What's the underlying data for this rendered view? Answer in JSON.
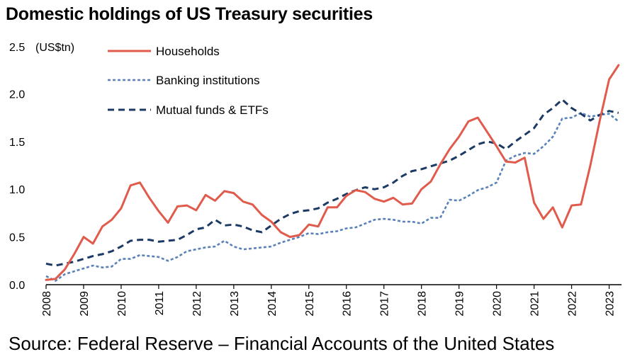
{
  "chart_data": {
    "type": "line",
    "title": "Domestic holdings of US Treasury securities",
    "ylabel": "(US$tn)",
    "xlabel": "",
    "source": "Source: Federal Reserve – Financial Accounts of the United States",
    "ylim": [
      0,
      2.5
    ],
    "xlim": [
      2008,
      2023.33
    ],
    "yticks": [
      "0.0",
      "0.5",
      "1.0",
      "1.5",
      "2.0",
      "2.5"
    ],
    "xticks": [
      "2008",
      "2009",
      "2010",
      "2011",
      "2012",
      "2013",
      "2014",
      "2015",
      "2016",
      "2017",
      "2018",
      "2019",
      "2020",
      "2021",
      "2022",
      "2023"
    ],
    "grid": false,
    "legend_position": "top-left",
    "series": [
      {
        "name": "Households",
        "color": "#e15b4c",
        "style": "solid",
        "x": [
          2008.0,
          2008.25,
          2008.5,
          2008.75,
          2009.0,
          2009.25,
          2009.5,
          2009.75,
          2010.0,
          2010.25,
          2010.5,
          2010.75,
          2011.0,
          2011.25,
          2011.5,
          2011.75,
          2012.0,
          2012.25,
          2012.5,
          2012.75,
          2013.0,
          2013.25,
          2013.5,
          2013.75,
          2014.0,
          2014.25,
          2014.5,
          2014.75,
          2015.0,
          2015.25,
          2015.5,
          2015.75,
          2016.0,
          2016.25,
          2016.5,
          2016.75,
          2017.0,
          2017.25,
          2017.5,
          2017.75,
          2018.0,
          2018.25,
          2018.5,
          2018.75,
          2019.0,
          2019.25,
          2019.5,
          2019.75,
          2020.0,
          2020.25,
          2020.5,
          2020.75,
          2021.0,
          2021.25,
          2021.5,
          2021.75,
          2022.0,
          2022.25,
          2022.5,
          2022.75,
          2023.0,
          2023.25
        ],
        "values": [
          0.05,
          0.06,
          0.16,
          0.32,
          0.5,
          0.43,
          0.61,
          0.68,
          0.8,
          1.04,
          1.07,
          0.91,
          0.77,
          0.65,
          0.82,
          0.83,
          0.78,
          0.94,
          0.88,
          0.98,
          0.96,
          0.87,
          0.84,
          0.73,
          0.66,
          0.55,
          0.5,
          0.52,
          0.63,
          0.61,
          0.81,
          0.81,
          0.93,
          0.99,
          0.97,
          0.9,
          0.87,
          0.91,
          0.84,
          0.85,
          1.0,
          1.08,
          1.26,
          1.42,
          1.55,
          1.71,
          1.75,
          1.6,
          1.45,
          1.29,
          1.28,
          1.33,
          0.86,
          0.69,
          0.81,
          0.6,
          0.83,
          0.84,
          1.25,
          1.72,
          2.15,
          2.3
        ]
      },
      {
        "name": "Banking institutions",
        "color": "#5a82b8",
        "style": "dotted",
        "x": [
          2008.0,
          2008.25,
          2008.5,
          2008.75,
          2009.0,
          2009.25,
          2009.5,
          2009.75,
          2010.0,
          2010.25,
          2010.5,
          2010.75,
          2011.0,
          2011.25,
          2011.5,
          2011.75,
          2012.0,
          2012.25,
          2012.5,
          2012.75,
          2013.0,
          2013.25,
          2013.5,
          2013.75,
          2014.0,
          2014.25,
          2014.5,
          2014.75,
          2015.0,
          2015.25,
          2015.5,
          2015.75,
          2016.0,
          2016.25,
          2016.5,
          2016.75,
          2017.0,
          2017.25,
          2017.5,
          2017.75,
          2018.0,
          2018.25,
          2018.5,
          2018.75,
          2019.0,
          2019.25,
          2019.5,
          2019.75,
          2020.0,
          2020.25,
          2020.5,
          2020.75,
          2021.0,
          2021.25,
          2021.5,
          2021.75,
          2022.0,
          2022.25,
          2022.5,
          2022.75,
          2023.0,
          2023.25
        ],
        "values": [
          0.09,
          0.04,
          0.11,
          0.14,
          0.17,
          0.2,
          0.18,
          0.19,
          0.27,
          0.27,
          0.31,
          0.3,
          0.29,
          0.25,
          0.29,
          0.35,
          0.37,
          0.39,
          0.4,
          0.46,
          0.4,
          0.37,
          0.38,
          0.39,
          0.4,
          0.44,
          0.47,
          0.5,
          0.54,
          0.53,
          0.55,
          0.56,
          0.59,
          0.6,
          0.64,
          0.68,
          0.69,
          0.68,
          0.66,
          0.66,
          0.64,
          0.7,
          0.7,
          0.89,
          0.88,
          0.93,
          0.99,
          1.02,
          1.07,
          1.3,
          1.35,
          1.38,
          1.37,
          1.45,
          1.55,
          1.74,
          1.75,
          1.8,
          1.76,
          1.78,
          1.79,
          1.71
        ]
      },
      {
        "name": "Mutual funds & ETFs",
        "color": "#1c3a63",
        "style": "dashed",
        "x": [
          2008.0,
          2008.25,
          2008.5,
          2008.75,
          2009.0,
          2009.25,
          2009.5,
          2009.75,
          2010.0,
          2010.25,
          2010.5,
          2010.75,
          2011.0,
          2011.25,
          2011.5,
          2011.75,
          2012.0,
          2012.25,
          2012.5,
          2012.75,
          2013.0,
          2013.25,
          2013.5,
          2013.75,
          2014.0,
          2014.25,
          2014.5,
          2014.75,
          2015.0,
          2015.25,
          2015.5,
          2015.75,
          2016.0,
          2016.25,
          2016.5,
          2016.75,
          2017.0,
          2017.25,
          2017.5,
          2017.75,
          2018.0,
          2018.25,
          2018.5,
          2018.75,
          2019.0,
          2019.25,
          2019.5,
          2019.75,
          2020.0,
          2020.25,
          2020.5,
          2020.75,
          2021.0,
          2021.25,
          2021.5,
          2021.75,
          2022.0,
          2022.25,
          2022.5,
          2022.75,
          2023.0,
          2023.25
        ],
        "values": [
          0.22,
          0.2,
          0.22,
          0.24,
          0.27,
          0.3,
          0.32,
          0.35,
          0.4,
          0.46,
          0.47,
          0.47,
          0.45,
          0.46,
          0.47,
          0.52,
          0.58,
          0.6,
          0.68,
          0.62,
          0.63,
          0.61,
          0.57,
          0.55,
          0.62,
          0.69,
          0.74,
          0.77,
          0.78,
          0.8,
          0.86,
          0.9,
          0.95,
          0.99,
          1.02,
          1.0,
          1.02,
          1.07,
          1.14,
          1.19,
          1.21,
          1.24,
          1.27,
          1.3,
          1.35,
          1.41,
          1.47,
          1.5,
          1.48,
          1.42,
          1.5,
          1.57,
          1.64,
          1.78,
          1.85,
          1.94,
          1.85,
          1.79,
          1.72,
          1.78,
          1.82,
          1.8
        ]
      }
    ]
  }
}
